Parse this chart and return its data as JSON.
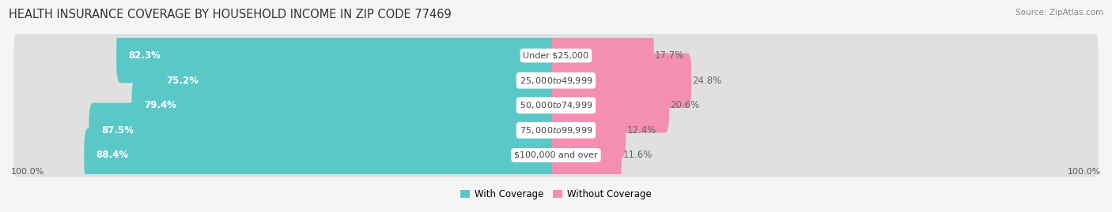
{
  "title": "HEALTH INSURANCE COVERAGE BY HOUSEHOLD INCOME IN ZIP CODE 77469",
  "source": "Source: ZipAtlas.com",
  "categories": [
    "Under $25,000",
    "$25,000 to $49,999",
    "$50,000 to $74,999",
    "$75,000 to $99,999",
    "$100,000 and over"
  ],
  "with_coverage": [
    82.3,
    75.2,
    79.4,
    87.5,
    88.4
  ],
  "without_coverage": [
    17.7,
    24.8,
    20.6,
    12.4,
    11.6
  ],
  "color_with": "#5BC8C8",
  "color_without": "#F48FB1",
  "bg_color": "#f5f5f5",
  "row_bg_color": "#e0e0e0",
  "bar_height": 0.6,
  "legend_label_with": "With Coverage",
  "legend_label_without": "Without Coverage",
  "left_label": "100.0%",
  "right_label": "100.0%",
  "title_fontsize": 10.5,
  "label_fontsize": 8.5,
  "cat_fontsize": 8.0,
  "pct_fontsize": 8.5,
  "tick_fontsize": 8.0
}
